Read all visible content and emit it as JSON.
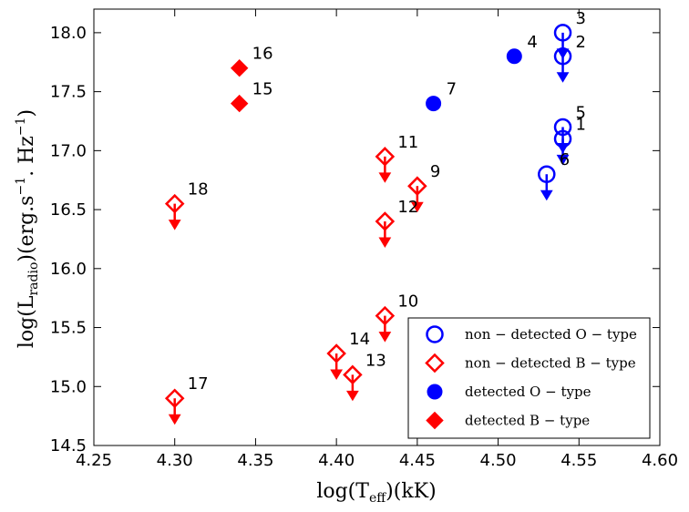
{
  "chart_data": {
    "type": "scatter",
    "xlabel": "log(T_eff)(kK)",
    "ylabel": "log(L_radio)(erg.s^-1. Hz^-1)",
    "xlim": [
      4.25,
      4.6
    ],
    "ylim": [
      14.5,
      18.2
    ],
    "xticks": [
      "4.25",
      "4.30",
      "4.35",
      "4.40",
      "4.45",
      "4.50",
      "4.55",
      "4.60"
    ],
    "yticks": [
      "14.5",
      "15.0",
      "15.5",
      "16.0",
      "16.5",
      "17.0",
      "17.5",
      "18.0"
    ],
    "grid": false,
    "legend_position": "lower-right",
    "colors": {
      "o_type": "#0000ff",
      "b_type": "#ff0000"
    },
    "series": [
      {
        "name": "non − detected O − type",
        "marker": "open-circle",
        "upper_limit": true,
        "color": "#0000ff",
        "points": [
          {
            "label": "3",
            "x": 4.54,
            "y": 18.0
          },
          {
            "label": "2",
            "x": 4.54,
            "y": 17.8
          },
          {
            "label": "5",
            "x": 4.54,
            "y": 17.2
          },
          {
            "label": "1",
            "x": 4.54,
            "y": 17.1
          },
          {
            "label": "6",
            "x": 4.53,
            "y": 16.8
          }
        ]
      },
      {
        "name": "non − detected B − type",
        "marker": "open-diamond",
        "upper_limit": true,
        "color": "#ff0000",
        "points": [
          {
            "label": "11",
            "x": 4.43,
            "y": 16.95
          },
          {
            "label": "9",
            "x": 4.45,
            "y": 16.7
          },
          {
            "label": "12",
            "x": 4.43,
            "y": 16.4
          },
          {
            "label": "18",
            "x": 4.3,
            "y": 16.55
          },
          {
            "label": "10",
            "x": 4.43,
            "y": 15.6
          },
          {
            "label": "14",
            "x": 4.4,
            "y": 15.28
          },
          {
            "label": "13",
            "x": 4.41,
            "y": 15.1
          },
          {
            "label": "17",
            "x": 4.3,
            "y": 14.9
          }
        ]
      },
      {
        "name": "detected O − type",
        "marker": "filled-circle",
        "upper_limit": false,
        "color": "#0000ff",
        "points": [
          {
            "label": "4",
            "x": 4.51,
            "y": 17.8
          },
          {
            "label": "7",
            "x": 4.46,
            "y": 17.4
          }
        ]
      },
      {
        "name": "detected B − type",
        "marker": "filled-diamond",
        "upper_limit": false,
        "color": "#ff0000",
        "points": [
          {
            "label": "16",
            "x": 4.34,
            "y": 17.7
          },
          {
            "label": "15",
            "x": 4.34,
            "y": 17.4
          }
        ]
      }
    ]
  }
}
